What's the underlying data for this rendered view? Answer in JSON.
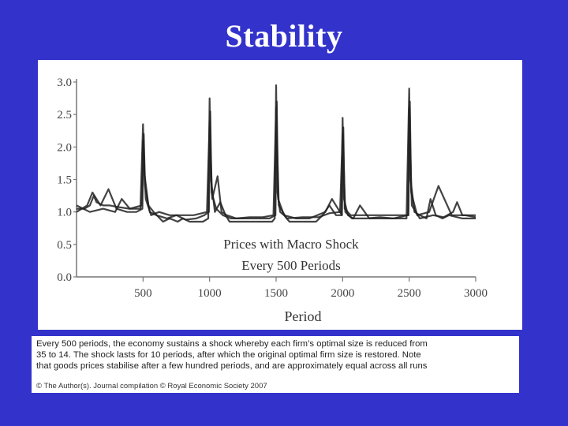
{
  "slide": {
    "title": "Stability"
  },
  "chart_data": {
    "type": "line",
    "annotation_lines": [
      "Prices with Macro Shock",
      "Every 500 Periods"
    ],
    "xlabel": "Period",
    "ylabel": "",
    "xlim": [
      0,
      3000
    ],
    "ylim": [
      0,
      3.0
    ],
    "x_ticks": [
      "500",
      "1000",
      "1500",
      "2000",
      "2500",
      "3000"
    ],
    "y_ticks": [
      "0.0",
      "0.5",
      "1.0",
      "1.5",
      "2.0",
      "2.5",
      "3.0"
    ],
    "grid": false,
    "legend": "none",
    "line_color": "#222222",
    "series": [
      {
        "x": [
          0,
          60,
          100,
          130,
          150,
          200,
          250,
          300,
          400,
          480,
          500,
          510,
          540,
          580,
          650,
          700,
          760,
          800,
          850,
          950,
          990,
          1000,
          1010,
          1040,
          1080,
          1120,
          1150,
          1200,
          1300,
          1400,
          1470,
          1490,
          1500,
          1510,
          1530,
          1560,
          1600,
          1700,
          1800,
          1850,
          1900,
          1950,
          1990,
          2000,
          2010,
          2040,
          2080,
          2130,
          2200,
          2300,
          2400,
          2480,
          2500,
          2510,
          2540,
          2580,
          2630,
          2660,
          2700,
          2750,
          2800,
          2900,
          3000
        ],
        "values": [
          1.05,
          1.05,
          1.1,
          1.25,
          1.15,
          1.1,
          1.1,
          1.08,
          1.05,
          1.05,
          2.35,
          1.6,
          1.1,
          1.0,
          0.85,
          0.9,
          0.85,
          0.9,
          0.85,
          0.85,
          0.9,
          2.75,
          1.5,
          1.0,
          1.15,
          0.95,
          0.85,
          0.85,
          0.85,
          0.85,
          0.85,
          0.9,
          2.95,
          1.3,
          1.0,
          0.95,
          0.85,
          0.85,
          0.85,
          0.95,
          1.1,
          0.95,
          0.95,
          2.45,
          1.2,
          0.95,
          0.9,
          1.1,
          0.9,
          0.9,
          0.9,
          0.9,
          2.9,
          1.5,
          1.0,
          0.95,
          0.9,
          1.2,
          0.95,
          0.9,
          0.95,
          0.9,
          0.9
        ]
      },
      {
        "x": [
          0,
          80,
          120,
          180,
          240,
          300,
          380,
          450,
          495,
          505,
          515,
          550,
          600,
          680,
          750,
          820,
          900,
          960,
          995,
          1005,
          1015,
          1050,
          1100,
          1160,
          1250,
          1350,
          1450,
          1495,
          1505,
          1515,
          1560,
          1650,
          1750,
          1870,
          1920,
          1995,
          2005,
          2015,
          2060,
          2150,
          2250,
          2350,
          2495,
          2505,
          2515,
          2560,
          2650,
          2720,
          2820,
          2920,
          3000
        ],
        "values": [
          1.0,
          1.1,
          1.3,
          1.1,
          1.35,
          1.05,
          1.0,
          1.0,
          1.05,
          2.2,
          1.4,
          1.0,
          0.95,
          0.9,
          0.95,
          0.88,
          0.9,
          0.95,
          1.0,
          2.55,
          1.3,
          1.05,
          0.95,
          0.9,
          0.9,
          0.9,
          0.9,
          0.95,
          2.7,
          1.2,
          0.95,
          0.9,
          0.9,
          1.0,
          1.2,
          0.95,
          2.3,
          1.05,
          0.95,
          0.95,
          0.95,
          0.95,
          0.95,
          2.7,
          1.3,
          0.95,
          1.0,
          1.4,
          0.95,
          0.95,
          0.92
        ]
      },
      {
        "x": [
          0,
          100,
          200,
          290,
          340,
          400,
          490,
          500,
          520,
          560,
          620,
          700,
          800,
          880,
          980,
          1000,
          1020,
          1060,
          1090,
          1130,
          1200,
          1300,
          1400,
          1480,
          1500,
          1520,
          1580,
          1700,
          1820,
          1900,
          1980,
          2000,
          2020,
          2070,
          2180,
          2280,
          2380,
          2490,
          2500,
          2520,
          2580,
          2680,
          2760,
          2830,
          2860,
          2900,
          3000
        ],
        "values": [
          1.1,
          1.0,
          1.05,
          1.0,
          1.2,
          1.05,
          1.1,
          2.1,
          1.2,
          0.95,
          1.0,
          0.95,
          0.95,
          0.95,
          1.0,
          2.4,
          1.2,
          1.55,
          1.0,
          0.95,
          0.9,
          0.92,
          0.92,
          0.95,
          2.6,
          1.1,
          0.9,
          0.92,
          0.92,
          0.98,
          1.0,
          2.2,
          1.0,
          0.9,
          0.9,
          0.92,
          0.9,
          0.95,
          2.6,
          1.1,
          0.9,
          0.95,
          0.92,
          1.0,
          1.15,
          0.95,
          0.95
        ]
      }
    ]
  },
  "caption": {
    "lines": [
      "Every 500 periods, the economy sustains a shock whereby each firm’s optimal size is reduced from",
      "35 to 14. The shock lasts for 10 periods, after which the original optimal firm size is restored. Note",
      "that goods prices stabilise after a few hundred periods, and are approximately equal across all runs"
    ],
    "copyright": "© The Author(s). Journal compilation © Royal Economic Society 2007"
  }
}
